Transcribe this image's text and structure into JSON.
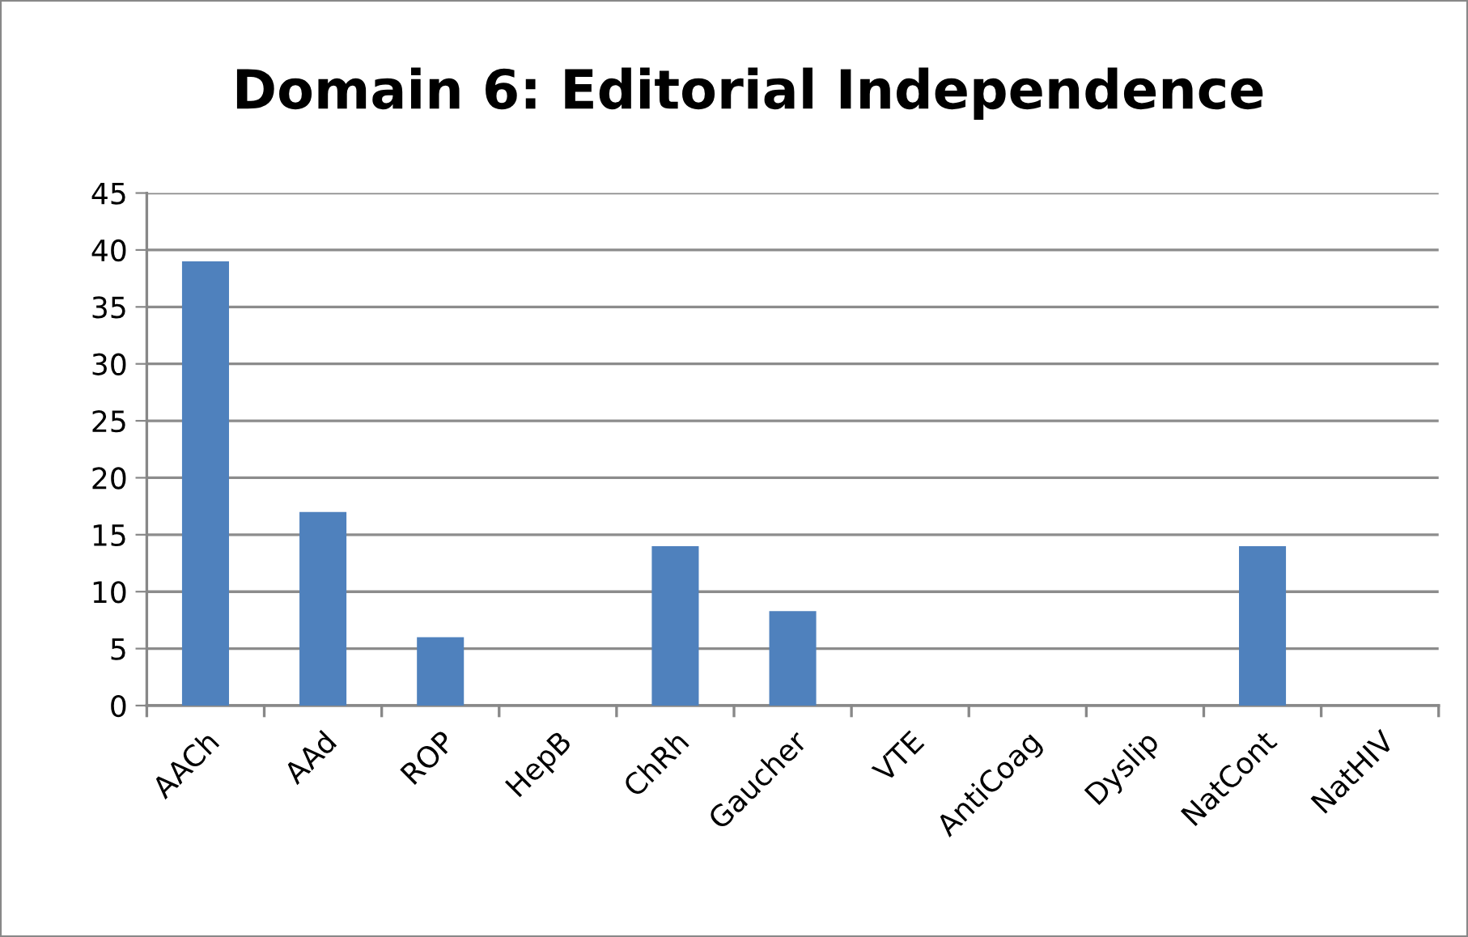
{
  "chart_data": {
    "type": "bar",
    "title": "Domain 6: Editorial Independence",
    "categories": [
      "AACh",
      "AAd",
      "ROP",
      "HepB",
      "ChRh",
      "Gaucher",
      "VTE",
      "AntiCoag",
      "Dyslip",
      "NatCont",
      "NatHIV"
    ],
    "values": [
      39,
      17,
      6,
      0,
      14,
      8.3,
      0,
      0,
      0,
      14,
      0
    ],
    "color": "#4f81bd",
    "ylim": [
      0,
      45
    ],
    "yticks": [
      0,
      5,
      10,
      15,
      20,
      25,
      30,
      35,
      40,
      45
    ],
    "grid": "y",
    "legend": false
  }
}
